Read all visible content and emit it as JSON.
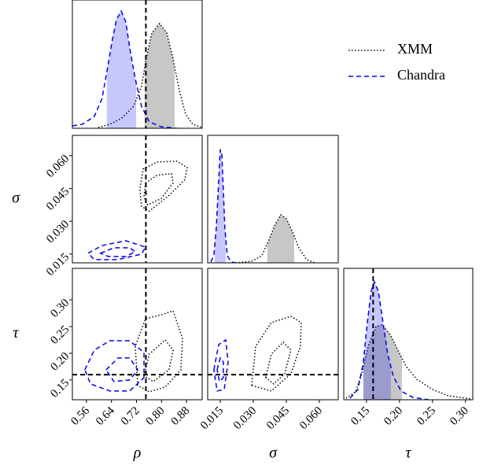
{
  "chart_data": [
    {
      "type": "line",
      "xlim": [
        0.515,
        0.93
      ],
      "ylim": [
        0,
        1.094
      ],
      "series": [
        {
          "name": "XMM",
          "color": "#000000",
          "linestyle": "dotted",
          "x": [
            0.598,
            0.635,
            0.673,
            0.711,
            0.736,
            0.751,
            0.769,
            0.794,
            0.817,
            0.837,
            0.857,
            0.877,
            0.9,
            0.93
          ],
          "values": [
            0.007,
            0.034,
            0.087,
            0.188,
            0.356,
            0.591,
            0.812,
            0.893,
            0.812,
            0.591,
            0.322,
            0.121,
            0.034,
            0.007
          ],
          "shade": [
            0.746,
            0.842
          ]
        },
        {
          "name": "Chandra",
          "color": "#0000ee",
          "linestyle": "dashed",
          "x": [
            0.515,
            0.547,
            0.585,
            0.61,
            0.628,
            0.643,
            0.656,
            0.671,
            0.686,
            0.698,
            0.716,
            0.736,
            0.761,
            0.799,
            0.849
          ],
          "values": [
            0.02,
            0.034,
            0.1,
            0.255,
            0.523,
            0.758,
            0.926,
            1.0,
            0.906,
            0.691,
            0.423,
            0.188,
            0.054,
            0.013,
            0
          ],
          "shade": [
            0.625,
            0.719
          ]
        }
      ],
      "vline": 0.75
    },
    {
      "type": "contour",
      "xlim": [
        0.515,
        0.93
      ],
      "ylim": [
        0.011,
        0.0693
      ],
      "ylabel": "σ",
      "yticks": [
        0.015,
        {
          "value": 0.03,
          "label": "0.030"
        },
        0.045,
        {
          "value": 0.06,
          "label": "0.060"
        }
      ],
      "series": [
        {
          "color": "#000000",
          "linestyle": "dotted",
          "levels": [
            {
              "x": [
                0.741,
                0.786,
                0.849,
                0.882,
                0.874,
                0.824,
                0.761,
                0.736,
                0.731
              ],
              "y": [
                0.0539,
                0.0571,
                0.0575,
                0.0546,
                0.0489,
                0.0418,
                0.0346,
                0.0368,
                0.0446
              ]
            },
            {
              "x": [
                0.749,
                0.786,
                0.832,
                0.837,
                0.799,
                0.756,
                0.744
              ],
              "y": [
                0.0475,
                0.0511,
                0.0518,
                0.0475,
                0.0404,
                0.0375,
                0.0411
              ]
            }
          ]
        },
        {
          "color": "#0000ee",
          "linestyle": "dashed",
          "levels": [
            {
              "x": [
                0.565,
                0.61,
                0.686,
                0.749,
                0.736,
                0.661,
                0.585
              ],
              "y": [
                0.0154,
                0.0189,
                0.0211,
                0.0182,
                0.015,
                0.0125,
                0.0125
              ]
            },
            {
              "x": [
                0.605,
                0.648,
                0.698,
                0.716,
                0.686,
                0.63
              ],
              "y": [
                0.0154,
                0.0179,
                0.0179,
                0.0161,
                0.0139,
                0.0139
              ]
            }
          ]
        }
      ],
      "vline": 0.75
    },
    {
      "type": "line",
      "xlim": [
        0.0093,
        0.0686
      ],
      "ylim": [
        0,
        1.1
      ],
      "series": [
        {
          "color": "#000000",
          "linestyle": "dotted",
          "x": [
            0.0221,
            0.0293,
            0.0339,
            0.0371,
            0.04,
            0.0425,
            0.045,
            0.0479,
            0.0507,
            0.0543,
            0.0579
          ],
          "values": [
            0,
            0.014,
            0.061,
            0.197,
            0.333,
            0.414,
            0.38,
            0.265,
            0.129,
            0.027,
            0
          ],
          "shade": [
            0.0364,
            0.0486
          ]
        },
        {
          "color": "#0000ee",
          "linestyle": "dashed",
          "x": [
            0.0107,
            0.0121,
            0.0132,
            0.0143,
            0.015,
            0.0157,
            0.0164,
            0.0171,
            0.0182,
            0.02,
            0.0221
          ],
          "values": [
            0.007,
            0.061,
            0.299,
            0.706,
            0.978,
            0.944,
            0.638,
            0.299,
            0.061,
            0.007,
            0
          ],
          "shade": [
            0.0125,
            0.0175
          ]
        }
      ]
    },
    {
      "type": "contour",
      "xlim": [
        0.515,
        0.93
      ],
      "ylim": [
        0.113,
        0.359
      ],
      "xlabel": "ρ",
      "ylabel": "τ",
      "xticks": [
        0.56,
        0.64,
        0.72,
        {
          "value": 0.8,
          "label": "0.80"
        },
        0.88
      ],
      "yticks": [
        0.15,
        {
          "value": 0.2,
          "label": "0.20"
        },
        0.25,
        {
          "value": 0.3,
          "label": "0.30"
        }
      ],
      "series": [
        {
          "color": "#000000",
          "linestyle": "dotted",
          "levels": [
            {
              "x": [
                0.724,
                0.716,
                0.749,
                0.799,
                0.837,
                0.867,
                0.862,
                0.812,
                0.761
              ],
              "y": [
                0.1397,
                0.2132,
                0.2647,
                0.2721,
                0.2794,
                0.2279,
                0.1691,
                0.1368,
                0.1279
              ]
            },
            {
              "x": [
                0.744,
                0.761,
                0.812,
                0.837,
                0.824,
                0.774
              ],
              "y": [
                0.1574,
                0.1985,
                0.225,
                0.2059,
                0.1691,
                0.1471
              ]
            }
          ]
        },
        {
          "color": "#0000ee",
          "linestyle": "dashed",
          "levels": [
            {
              "x": [
                0.555,
                0.585,
                0.635,
                0.698,
                0.744,
                0.744,
                0.698,
                0.635,
                0.573
              ],
              "y": [
                0.1691,
                0.2059,
                0.2235,
                0.2235,
                0.2015,
                0.1544,
                0.1294,
                0.1294,
                0.1426
              ]
            },
            {
              "x": [
                0.623,
                0.661,
                0.698,
                0.724,
                0.698,
                0.648
              ],
              "y": [
                0.1691,
                0.1912,
                0.1912,
                0.1691,
                0.15,
                0.1471
              ]
            }
          ]
        }
      ],
      "vline": 0.75,
      "hline": 0.16
    },
    {
      "type": "contour",
      "xlim": [
        0.0093,
        0.0686
      ],
      "ylim": [
        0.113,
        0.359
      ],
      "xlabel": "σ",
      "xticks": [
        0.015,
        {
          "value": 0.03,
          "label": "0.030"
        },
        0.045,
        {
          "value": 0.06,
          "label": "0.060"
        }
      ],
      "series": [
        {
          "color": "#000000",
          "linestyle": "dotted",
          "levels": [
            {
              "x": [
                0.0293,
                0.0311,
                0.0382,
                0.0471,
                0.0518,
                0.0514,
                0.0471,
                0.0382
              ],
              "y": [
                0.1397,
                0.2132,
                0.2574,
                0.2691,
                0.2574,
                0.2132,
                0.1618,
                0.1294
              ]
            },
            {
              "x": [
                0.0357,
                0.0382,
                0.0436,
                0.0471,
                0.0443,
                0.0393
              ],
              "y": [
                0.1544,
                0.1985,
                0.2206,
                0.2059,
                0.1618,
                0.1426
              ]
            }
          ]
        },
        {
          "color": "#0000ee",
          "linestyle": "dashed",
          "levels": [
            {
              "x": [
                0.0121,
                0.0143,
                0.0175,
                0.0186,
                0.0168,
                0.0136
              ],
              "y": [
                0.1691,
                0.2162,
                0.225,
                0.1838,
                0.1324,
                0.1294
              ]
            },
            {
              "x": [
                0.0136,
                0.015,
                0.0164,
                0.0164,
                0.0146
              ],
              "y": [
                0.1691,
                0.1912,
                0.1838,
                0.1544,
                0.1471
              ]
            }
          ]
        }
      ],
      "hline": 0.16
    },
    {
      "type": "line",
      "xlim": [
        0.1155,
        0.311
      ],
      "ylim": [
        0,
        1.1
      ],
      "xlabel": "τ",
      "xticks": [
        0.15,
        {
          "value": 0.2,
          "label": "0.20"
        },
        0.25,
        {
          "value": 0.3,
          "label": "0.30"
        }
      ],
      "series": [
        {
          "color": "#000000",
          "linestyle": "dotted",
          "x": [
            0.119,
            0.1333,
            0.1429,
            0.1524,
            0.1643,
            0.1738,
            0.1857,
            0.1976,
            0.2095,
            0.2262,
            0.25,
            0.2738,
            0.3095
          ],
          "values": [
            0.013,
            0.066,
            0.217,
            0.448,
            0.613,
            0.626,
            0.547,
            0.415,
            0.283,
            0.171,
            0.086,
            0.033,
            0.007
          ],
          "shade": [
            0.1452,
            0.2036
          ]
        },
        {
          "color": "#0000ee",
          "linestyle": "dashed",
          "x": [
            0.125,
            0.1369,
            0.1452,
            0.1512,
            0.1571,
            0.1619,
            0.1679,
            0.175,
            0.1821,
            0.1905,
            0.2024,
            0.2202,
            0.244
          ],
          "values": [
            0.013,
            0.086,
            0.316,
            0.646,
            0.909,
            0.988,
            0.909,
            0.646,
            0.382,
            0.198,
            0.072,
            0.02,
            0
          ],
          "shade": [
            0.1452,
            0.1869
          ]
        }
      ],
      "vline": 0.16
    }
  ]
}
